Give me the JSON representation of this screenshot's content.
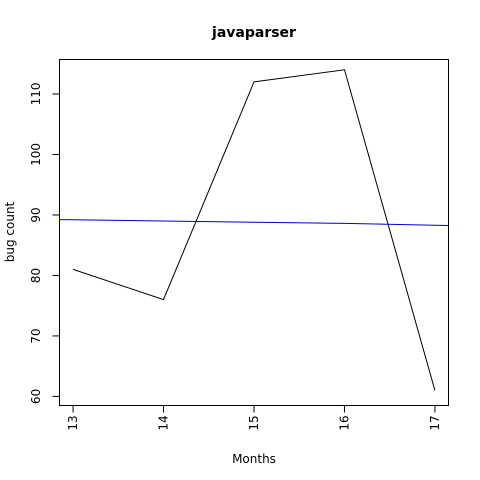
{
  "chart_data": {
    "type": "line",
    "title": "javaparser",
    "xlabel": "Months",
    "ylabel": "bug count",
    "x": [
      13,
      14,
      15,
      16,
      17
    ],
    "xlim": [
      12.85,
      17.15
    ],
    "ylim": [
      58.5,
      115.7
    ],
    "x_ticks": [
      13,
      14,
      15,
      16,
      17
    ],
    "y_ticks": [
      60,
      70,
      80,
      90,
      100,
      110
    ],
    "x_tick_labels": [
      "13",
      "14",
      "15",
      "16",
      "17"
    ],
    "y_tick_labels": [
      "60",
      "70",
      "80",
      "90",
      "100",
      "110"
    ],
    "grid": false,
    "series": [
      {
        "values": [
          81,
          76,
          112,
          114,
          61
        ],
        "color": "#000000"
      },
      {
        "values": [
          89.2,
          89.0,
          88.8,
          88.6,
          88.3
        ],
        "color": "#0000cc",
        "extends_full_width": true
      }
    ]
  }
}
